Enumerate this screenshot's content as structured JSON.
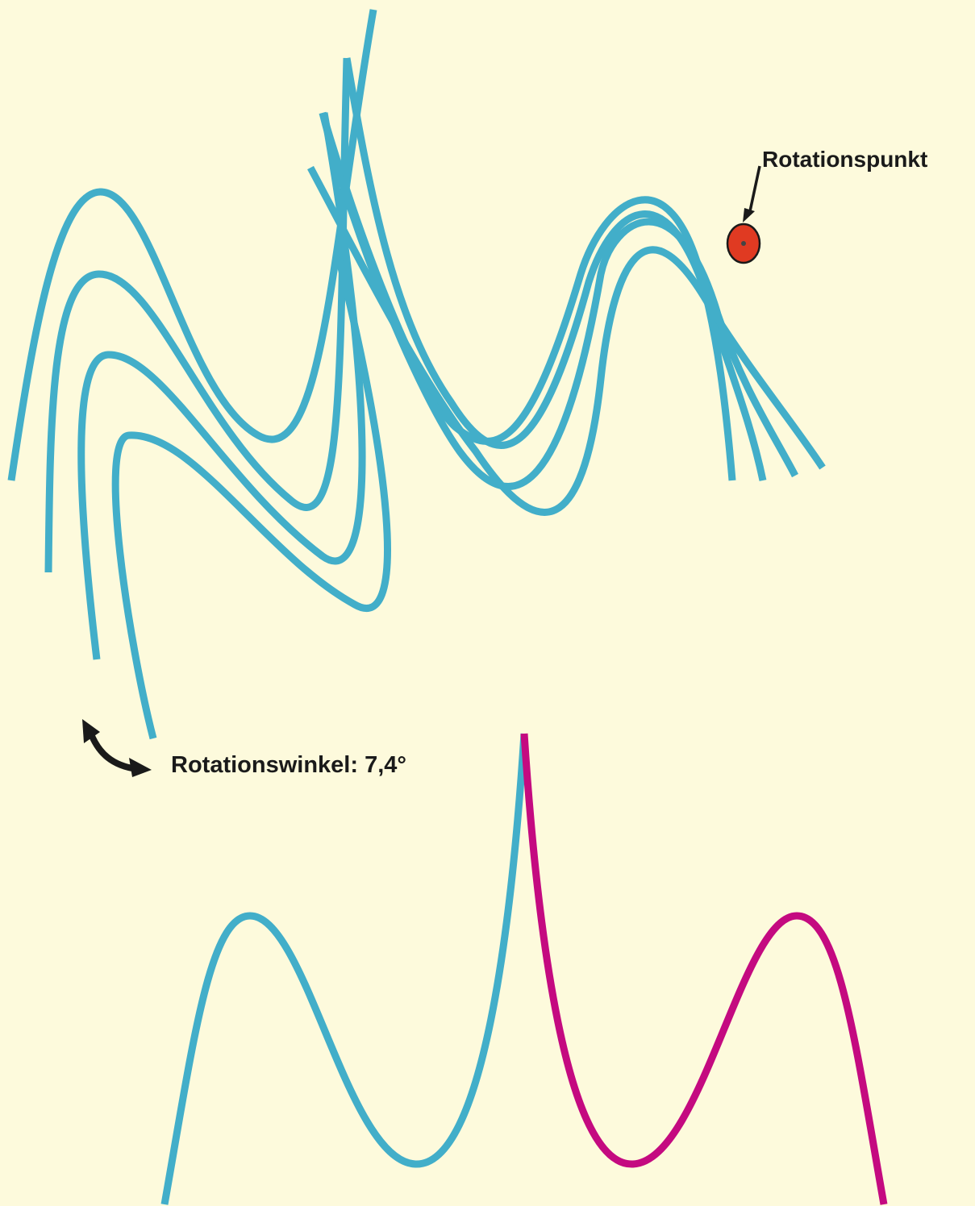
{
  "labels": {
    "pivot_label": "Rotationspunkt",
    "angle_label": "Rotationswinkel: 7,4°"
  },
  "colors": {
    "background": "#fdfadc",
    "curve_primary": "#42aec9",
    "curve_mirrored": "#c40a80",
    "pivot_fill": "#e03a22",
    "pivot_outline": "#1a1a1a",
    "text": "#1a1a1a"
  },
  "rotation": {
    "angle_degrees": 7.4,
    "curve_copies": 4
  }
}
